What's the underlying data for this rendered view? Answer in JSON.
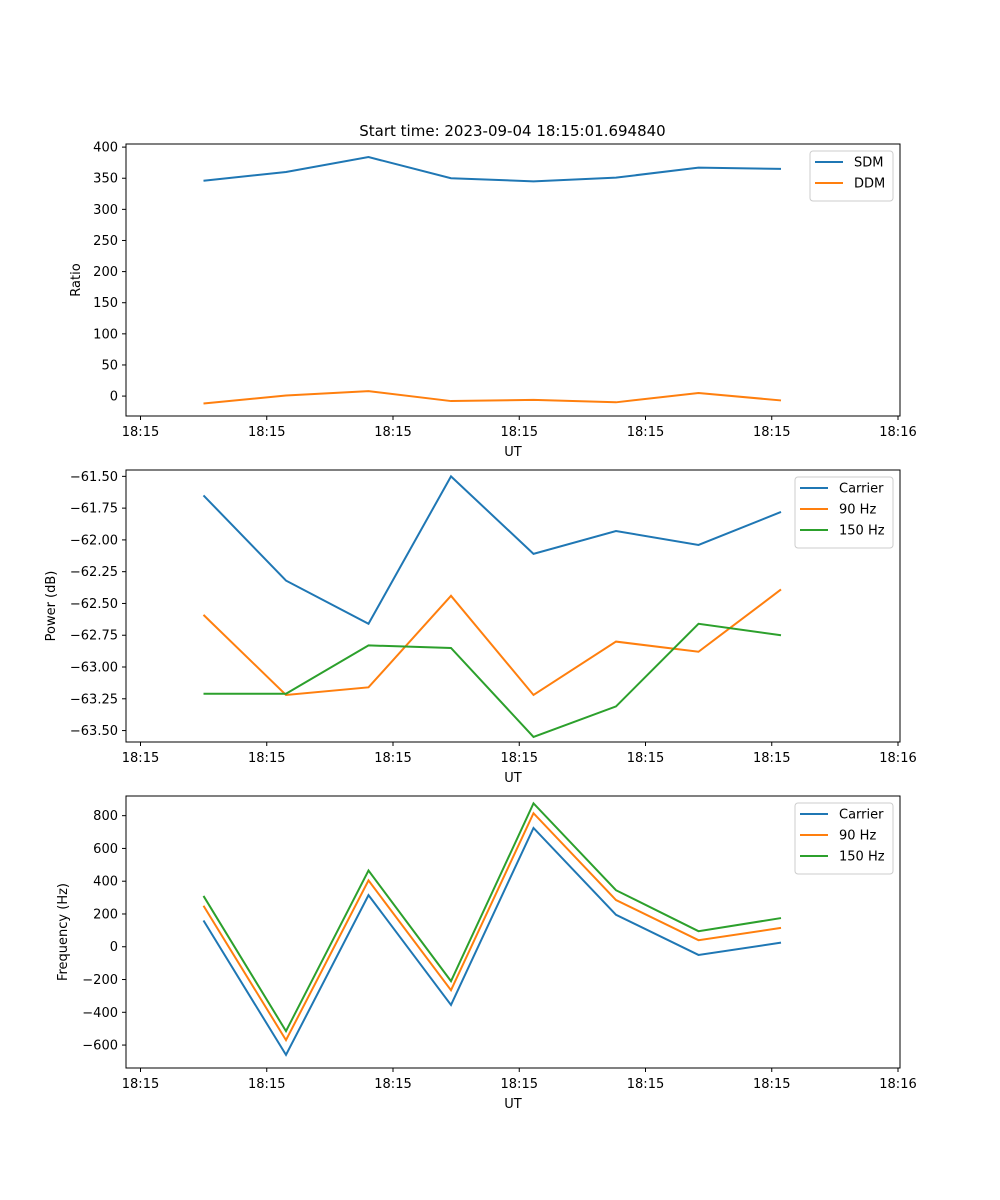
{
  "title": "Start time: 2023-09-04 18:15:01.694840",
  "chart_data": [
    {
      "type": "line",
      "xlabel": "UT",
      "ylabel": "Ratio",
      "xticklabels": [
        "18:15",
        "18:15",
        "18:15",
        "18:15",
        "18:15",
        "18:15",
        "18:16"
      ],
      "yticks": [
        0,
        50,
        100,
        150,
        200,
        250,
        300,
        350,
        400
      ],
      "ylim": [
        -32,
        405
      ],
      "x_index": [
        0,
        1,
        2,
        3,
        4,
        5,
        6,
        7
      ],
      "legend_position": "upper-right",
      "series": [
        {
          "name": "SDM",
          "color": "#1f77b4",
          "values": [
            346,
            360,
            384,
            350,
            345,
            351,
            367,
            365
          ]
        },
        {
          "name": "DDM",
          "color": "#ff7f0e",
          "values": [
            -12,
            1,
            8,
            -8,
            -6,
            -10,
            5,
            -7
          ]
        }
      ]
    },
    {
      "type": "line",
      "xlabel": "UT",
      "ylabel": "Power (dB)",
      "xticklabels": [
        "18:15",
        "18:15",
        "18:15",
        "18:15",
        "18:15",
        "18:15",
        "18:16"
      ],
      "yticks": [
        -63.5,
        -63.25,
        -63.0,
        -62.75,
        -62.5,
        -62.25,
        -62.0,
        -61.75,
        -61.5
      ],
      "yticklabels": [
        "−63.50",
        "−63.25",
        "−63.00",
        "−62.75",
        "−62.50",
        "−62.25",
        "−62.00",
        "−61.75",
        "−61.50"
      ],
      "ylim": [
        -63.59,
        -61.45
      ],
      "x_index": [
        0,
        1,
        2,
        3,
        4,
        5,
        6,
        7
      ],
      "legend_position": "upper-right",
      "series": [
        {
          "name": "Carrier",
          "color": "#1f77b4",
          "values": [
            -61.65,
            -62.32,
            -62.66,
            -61.5,
            -62.11,
            -61.93,
            -62.04,
            -61.78
          ]
        },
        {
          "name": "90 Hz",
          "color": "#ff7f0e",
          "values": [
            -62.59,
            -63.22,
            -63.16,
            -62.44,
            -63.22,
            -62.8,
            -62.88,
            -62.39
          ]
        },
        {
          "name": "150 Hz",
          "color": "#2ca02c",
          "values": [
            -63.21,
            -63.21,
            -62.83,
            -62.85,
            -63.55,
            -63.31,
            -62.66,
            -62.75
          ]
        }
      ]
    },
    {
      "type": "line",
      "xlabel": "UT",
      "ylabel": "Frequency (Hz)",
      "xticklabels": [
        "18:15",
        "18:15",
        "18:15",
        "18:15",
        "18:15",
        "18:15",
        "18:16"
      ],
      "yticks": [
        -600,
        -400,
        -200,
        0,
        200,
        400,
        600,
        800
      ],
      "yticklabels": [
        "−600",
        "−400",
        "−200",
        "0",
        "200",
        "400",
        "600",
        "800"
      ],
      "ylim": [
        -740,
        920
      ],
      "x_index": [
        0,
        1,
        2,
        3,
        4,
        5,
        6,
        7
      ],
      "legend_position": "upper-right",
      "series": [
        {
          "name": "Carrier",
          "color": "#1f77b4",
          "values": [
            160,
            -660,
            315,
            -355,
            725,
            195,
            -50,
            25
          ]
        },
        {
          "name": "90 Hz",
          "color": "#ff7f0e",
          "values": [
            250,
            -570,
            405,
            -265,
            815,
            285,
            40,
            115
          ]
        },
        {
          "name": "150 Hz",
          "color": "#2ca02c",
          "values": [
            310,
            -515,
            465,
            -210,
            875,
            345,
            95,
            175
          ]
        }
      ]
    }
  ]
}
